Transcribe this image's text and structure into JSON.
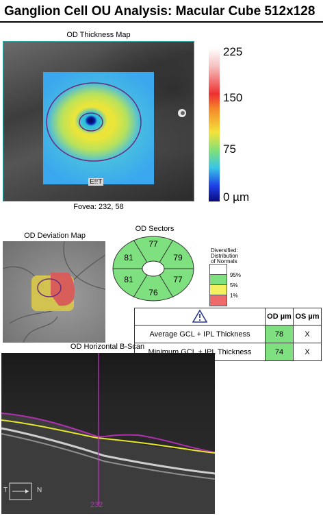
{
  "header": {
    "title": "Ganglion Cell OU Analysis: Macular Cube 512x128"
  },
  "thickness_map": {
    "label": "OD Thickness Map",
    "fovea_text": "Fovea: 232, 58",
    "overlay_text": "E!!T",
    "scale": {
      "labels": [
        "225",
        "150",
        "75",
        "0 µm"
      ]
    }
  },
  "deviation_map": {
    "label": "OD Deviation Map"
  },
  "sectors": {
    "label": "OD Sectors",
    "values": {
      "top": "77",
      "upper_right": "79",
      "lower_right": "77",
      "bottom": "76",
      "lower_left": "81",
      "upper_left": "81"
    },
    "colors": {
      "normal": "#7fe07f"
    }
  },
  "legend": {
    "title_lines": [
      "Diversified:",
      "Distribution",
      "of Normals"
    ],
    "ticks": [
      "95%",
      "5%",
      "1%"
    ],
    "colors": [
      "#ffffff",
      "#7fe07f",
      "#f5f060",
      "#ee6a6a"
    ]
  },
  "results_table": {
    "warning_icon": "warning-triangle-icon",
    "col_od": "OD µm",
    "col_os": "OS µm",
    "rows": [
      {
        "label": "Average GCL + IPL Thickness",
        "od": "78",
        "os": "X"
      },
      {
        "label": "Minimum GCL + IPL Thickness",
        "od": "74",
        "os": "X"
      }
    ]
  },
  "bscan": {
    "label": "OD Horizontal B-Scan",
    "position": "232",
    "orientation_left": "T",
    "orientation_right": "N"
  }
}
